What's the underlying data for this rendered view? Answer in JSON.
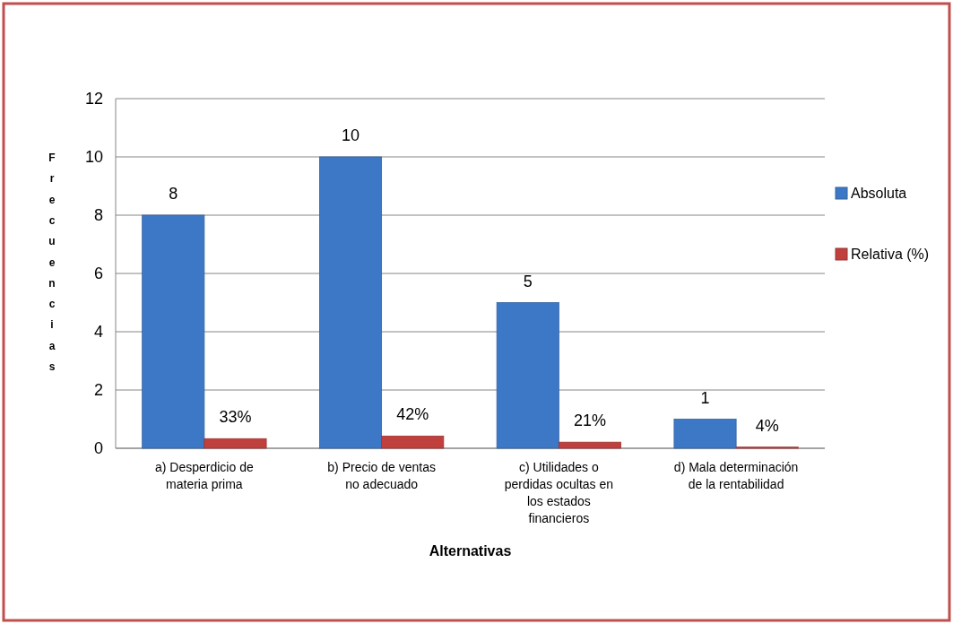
{
  "chart_data": {
    "type": "bar",
    "xlabel": "Alternativas",
    "ylabel": "Frecuencias",
    "categories": [
      "a) Desperdicio de materia prima",
      "b) Precio de ventas no adecuado",
      "c) Utilidades o perdidas ocultas en los estados financieros",
      "d) Mala determinación de la rentabilidad"
    ],
    "series": [
      {
        "name": "Absoluta",
        "color": "#3d78c6",
        "values": [
          8,
          10,
          5,
          1
        ],
        "value_labels": [
          "8",
          "10",
          "5",
          "1"
        ]
      },
      {
        "name": "Relativa (%)",
        "color": "#c0403e",
        "values": [
          0.33,
          0.42,
          0.21,
          0.04
        ],
        "value_labels": [
          "33%",
          "42%",
          "21%",
          "4%"
        ]
      }
    ],
    "ylim": [
      0,
      12
    ],
    "yticks": [
      0,
      2,
      4,
      6,
      8,
      10,
      12
    ],
    "grid": "y",
    "legend": "right"
  }
}
